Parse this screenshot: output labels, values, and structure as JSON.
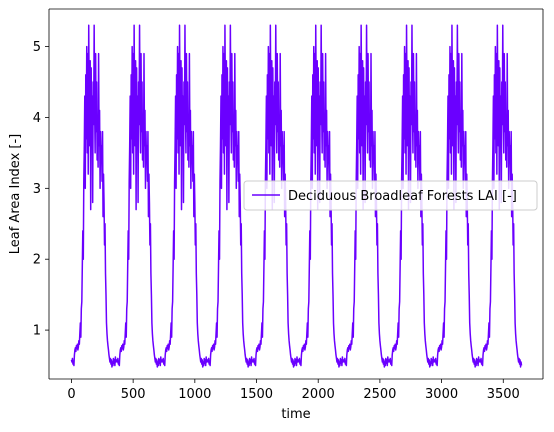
{
  "chart_data": {
    "type": "line",
    "xlabel": "time",
    "ylabel": "Leaf Area Index [-]",
    "xlim": [
      -182,
      3822
    ],
    "ylim": [
      0.31,
      5.53
    ],
    "xticks": [
      0,
      500,
      1000,
      1500,
      2000,
      2500,
      3000,
      3500
    ],
    "yticks": [
      1,
      2,
      3,
      4,
      5
    ],
    "grid": false,
    "legend_position": "center-right",
    "series": [
      {
        "name": "Deciduous Broadleaf Forests LAI [-]",
        "color": "#6a00ff",
        "x_start": 0,
        "x_step": 4,
        "period_points": 92,
        "cycles": 10,
        "total_points": 913,
        "values_per_year": [
          0.58,
          0.55,
          0.6,
          0.52,
          0.55,
          0.5,
          0.65,
          0.72,
          0.75,
          0.7,
          0.78,
          0.74,
          0.8,
          0.72,
          0.76,
          0.85,
          0.8,
          0.95,
          1.1,
          0.9,
          1.3,
          1.4,
          1.9,
          2.4,
          2.0,
          3.1,
          3.6,
          4.3,
          3.0,
          4.6,
          3.7,
          5.0,
          3.5,
          4.9,
          3.2,
          5.3,
          4.2,
          3.6,
          4.8,
          2.7,
          4.7,
          3.6,
          4.3,
          2.8,
          4.5,
          3.9,
          5.3,
          4.1,
          3.5,
          4.9,
          3.8,
          4.5,
          3.4,
          4.0,
          3.3,
          4.9,
          3.6,
          4.1,
          3.0,
          3.8,
          3.4,
          3.6,
          3.1,
          3.8,
          2.6,
          3.2,
          2.8,
          2.2,
          2.5,
          1.8,
          1.5,
          1.1,
          0.95,
          0.85,
          0.78,
          0.72,
          0.65,
          0.6,
          0.55,
          0.6,
          0.52,
          0.58,
          0.48,
          0.55,
          0.5,
          0.6,
          0.53,
          0.58,
          0.5,
          0.62,
          0.55,
          0.57
        ]
      }
    ]
  }
}
